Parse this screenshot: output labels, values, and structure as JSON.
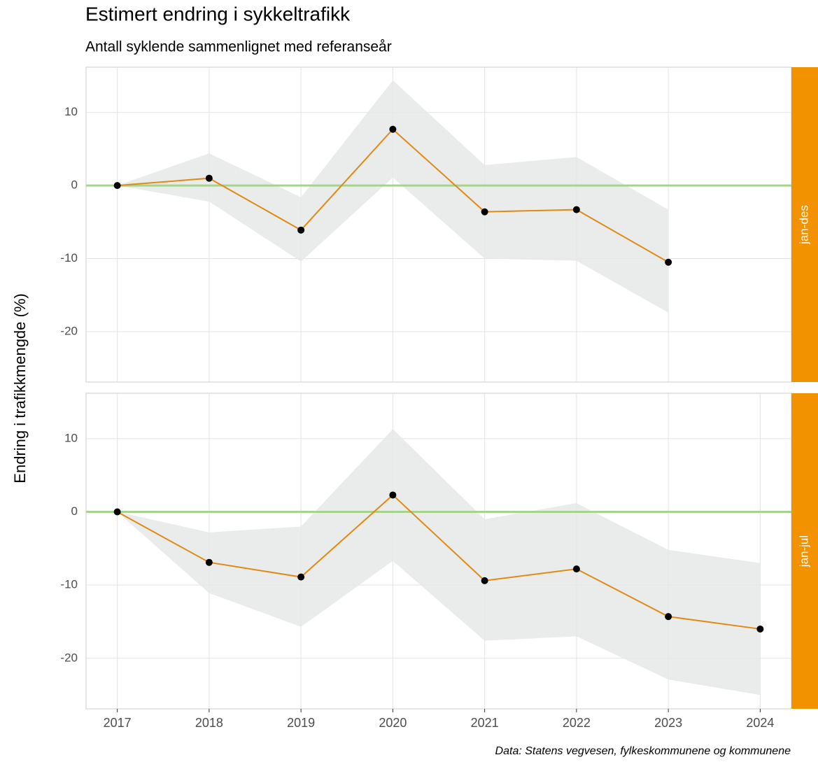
{
  "chart_data": [
    {
      "type": "line",
      "title": "Estimert endring i sykkeltrafikk",
      "subtitle": "Antall syklende sammenlignet med referanseår",
      "y_label": "Endring i trafikkmengde (%)",
      "caption": "Data: Statens vegvesen, fylkeskommunene og kommunene",
      "facet": "jan-des",
      "facet_color": "#f39200",
      "x": [
        2017,
        2018,
        2019,
        2020,
        2021,
        2022,
        2023
      ],
      "series": [
        {
          "color": "#e08a14",
          "point_color": "#000000",
          "values": [
            0,
            1.0,
            -6.1,
            7.7,
            -3.6,
            -3.3,
            -10.5
          ],
          "lower": [
            0,
            -2.2,
            -10.4,
            1.1,
            -10.0,
            -10.3,
            -17.4
          ],
          "upper": [
            0,
            4.4,
            -1.6,
            14.4,
            2.8,
            3.9,
            -3.3
          ],
          "band_color": "#e6e7e8"
        }
      ],
      "hline": 0,
      "hline_color": "#a6d48f",
      "xlim": [
        2016.66,
        2024.34
      ],
      "ylim": [
        -26.9,
        16.2
      ],
      "yticks": [
        -20,
        -10,
        0,
        10
      ],
      "grid": true
    },
    {
      "type": "line",
      "facet": "jan-jul",
      "facet_color": "#f39200",
      "x": [
        2017,
        2018,
        2019,
        2020,
        2021,
        2022,
        2023,
        2024
      ],
      "series": [
        {
          "color": "#e08a14",
          "point_color": "#000000",
          "values": [
            0,
            -6.9,
            -8.9,
            2.3,
            -9.4,
            -7.8,
            -14.3,
            -16.0
          ],
          "lower": [
            0,
            -11.1,
            -15.7,
            -6.7,
            -17.6,
            -17.0,
            -22.9,
            -25.0
          ],
          "upper": [
            0,
            -2.8,
            -2.0,
            11.3,
            -1.0,
            1.2,
            -5.2,
            -7.0
          ],
          "band_color": "#e6e7e8"
        }
      ],
      "hline": 0,
      "hline_color": "#a6d48f",
      "xlim": [
        2016.66,
        2024.34
      ],
      "ylim": [
        -26.9,
        16.2
      ],
      "yticks": [
        -20,
        -10,
        0,
        10
      ],
      "xticks": [
        2017,
        2018,
        2019,
        2020,
        2021,
        2022,
        2023,
        2024
      ],
      "grid": true
    }
  ]
}
